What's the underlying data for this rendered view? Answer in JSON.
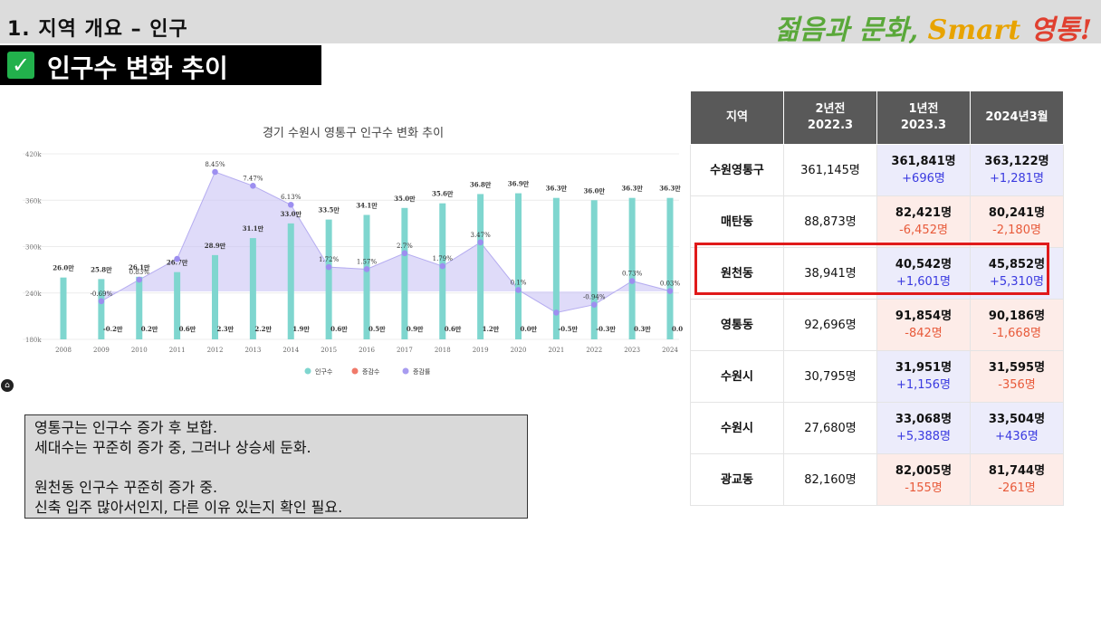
{
  "header": {
    "section_title": "1. 지역 개요 – 인구",
    "brand_part1": "젊음과 문화,",
    "brand_part2": " Smart ",
    "brand_part3": "영통!"
  },
  "subtitle": {
    "check": "✓",
    "text": "인구수 변화 추이"
  },
  "chart_data": {
    "type": "bar",
    "title": "경기 수원시 영통구 인구수 변화 추이",
    "categories": [
      "2008",
      "2009",
      "2010",
      "2011",
      "2012",
      "2013",
      "2014",
      "2015",
      "2016",
      "2017",
      "2018",
      "2019",
      "2020",
      "2021",
      "2022",
      "2023",
      "2024"
    ],
    "y_ticks": [
      "420k",
      "360k",
      "300k",
      "240k",
      "180k"
    ],
    "ylim": [
      180000,
      420000
    ],
    "series": [
      {
        "name": "인구수",
        "color": "#7fd6cf",
        "values": [
          260000,
          258000,
          261000,
          267000,
          289000,
          311000,
          330000,
          335000,
          341000,
          350000,
          356000,
          368000,
          369000,
          363000,
          360000,
          363000,
          363000
        ],
        "labels": [
          "26.0만",
          "25.8만",
          "26.1만",
          "26.7만",
          "28.9만",
          "31.1만",
          "33.0만",
          "33.5만",
          "34.1만",
          "35.0만",
          "35.6만",
          "36.8만",
          "36.9만",
          "36.3만",
          "36.0만",
          "36.3만",
          "36.3만"
        ]
      },
      {
        "name": "증감수",
        "color": "#f07a6a",
        "labels": [
          "",
          "-0.2만",
          "0.2만",
          "0.6만",
          "2.3만",
          "2.2만",
          "1.9만",
          "0.6만",
          "0.5만",
          "0.9만",
          "0.6만",
          "1.2만",
          "0.0만",
          "-0.5만",
          "-0.3만",
          "0.3만",
          "0.0"
        ]
      },
      {
        "name": "증감률",
        "color": "#a89cf0",
        "values": [
          null,
          -0.69,
          0.83,
          2.3,
          8.45,
          7.47,
          6.13,
          1.72,
          1.57,
          2.7,
          1.79,
          3.47,
          0.1,
          -1.5,
          -0.94,
          0.73,
          0.03
        ],
        "labels": [
          "",
          "-0.69%",
          "0.83%",
          "",
          "8.45%",
          "7.47%",
          "6.13%",
          "1.72%",
          "1.57%",
          "2.7%",
          "1.79%",
          "3.47%",
          "0.1%",
          "",
          "-0.94%",
          "0.73%",
          "0.03%"
        ]
      }
    ],
    "legend": "bottom-center"
  },
  "notes": [
    "영통구는 인구수 증가 후 보합.",
    "세대수는 꾸준히 증가 중, 그러나 상승세 둔화.",
    "",
    "원천동 인구수 꾸준히 증가 중.",
    "신축 입주 많아서인지, 다른 이유 있는지 확인 필요."
  ],
  "table": {
    "headers": [
      "지역",
      "2년전\n2022.3",
      "1년전\n2023.3",
      "2024년3월"
    ],
    "rows": [
      {
        "region": "수원영통구",
        "base": "361,145명",
        "y1": "361,841명",
        "y1chg": "+696명",
        "y1sign": "pos",
        "y2": "363,122명",
        "y2chg": "+1,281명",
        "y2sign": "pos"
      },
      {
        "region": "매탄동",
        "base": "88,873명",
        "y1": "82,421명",
        "y1chg": "-6,452명",
        "y1sign": "neg",
        "y2": "80,241명",
        "y2chg": "-2,180명",
        "y2sign": "neg"
      },
      {
        "region": "원천동",
        "base": "38,941명",
        "y1": "40,542명",
        "y1chg": "+1,601명",
        "y1sign": "pos",
        "y2": "45,852명",
        "y2chg": "+5,310명",
        "y2sign": "pos"
      },
      {
        "region": "영통동",
        "base": "92,696명",
        "y1": "91,854명",
        "y1chg": "-842명",
        "y1sign": "neg",
        "y2": "90,186명",
        "y2chg": "-1,668명",
        "y2sign": "neg"
      },
      {
        "region": "수원시",
        "base": "30,795명",
        "y1": "31,951명",
        "y1chg": "+1,156명",
        "y1sign": "pos",
        "y2": "31,595명",
        "y2chg": "-356명",
        "y2sign": "neg"
      },
      {
        "region": "수원시",
        "base": "27,680명",
        "y1": "33,068명",
        "y1chg": "+5,388명",
        "y1sign": "pos",
        "y2": "33,504명",
        "y2chg": "+436명",
        "y2sign": "pos"
      },
      {
        "region": "광교동",
        "base": "82,160명",
        "y1": "82,005명",
        "y1chg": "-155명",
        "y1sign": "neg",
        "y2": "81,744명",
        "y2chg": "-261명",
        "y2sign": "neg"
      }
    ]
  }
}
